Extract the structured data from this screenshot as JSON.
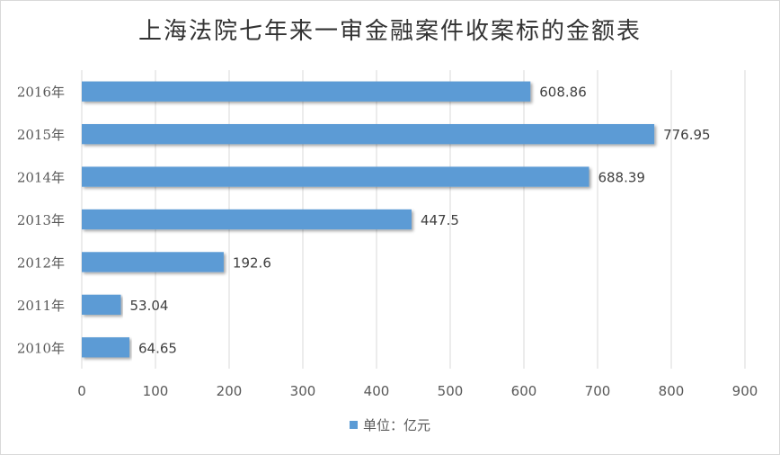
{
  "chart_data": {
    "type": "bar",
    "orientation": "horizontal",
    "title": "上海法院七年来一审金融案件收案标的金额表",
    "categories": [
      "2016年",
      "2015年",
      "2014年",
      "2013年",
      "2012年",
      "2011年",
      "2010年"
    ],
    "values": [
      608.86,
      776.95,
      688.39,
      447.5,
      192.6,
      53.04,
      64.65
    ],
    "value_labels": [
      "608.86",
      "776.95",
      "688.39",
      "447.5",
      "192.6",
      "53.04",
      "64.65"
    ],
    "xlim": [
      0,
      900
    ],
    "x_ticks": [
      "0",
      "100",
      "200",
      "300",
      "400",
      "500",
      "600",
      "700",
      "800",
      "900"
    ],
    "grid": true,
    "legend": {
      "position": "bottom",
      "label": "单位：亿元"
    },
    "colors": {
      "bar": "#5b9bd5",
      "grid": "#d9d9d9"
    }
  }
}
